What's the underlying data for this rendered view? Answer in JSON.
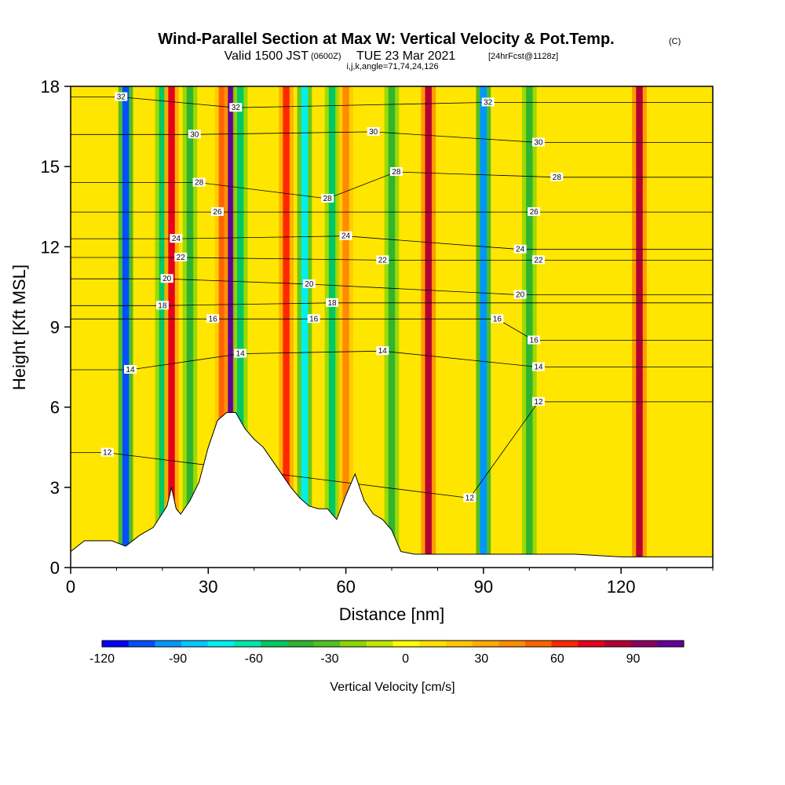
{
  "title": {
    "main": "Wind-Parallel Section at Max W: Vertical Velocity & Pot.Temp.",
    "main_suffix": "(C)",
    "valid_prefix": "Valid 1500 JST",
    "valid_z": "(0600Z)",
    "valid_date": "TUE 23 Mar 2021",
    "valid_fcst": "[24hrFcst@1128z]",
    "indices": "i,j,k,angle=71,74,24,126"
  },
  "chart_data": {
    "type": "heatmap",
    "xlabel": "Distance [nm]",
    "ylabel": "Height [Kft MSL]",
    "xlim": [
      0,
      140
    ],
    "ylim": [
      0,
      18
    ],
    "x_ticks": [
      0,
      30,
      60,
      90,
      120
    ],
    "y_ticks": [
      0,
      3,
      6,
      9,
      12,
      15,
      18
    ],
    "x_tick_labels": [
      "0",
      "30",
      "60",
      "90",
      "120"
    ],
    "y_tick_labels": [
      "0",
      "3",
      "6",
      "9",
      "12",
      "15",
      "18"
    ],
    "colorbar": {
      "title": "Vertical Velocity [cm/s]",
      "ticks": [
        -120,
        -90,
        -60,
        -30,
        0,
        30,
        60,
        90
      ],
      "tick_labels": [
        "-120",
        "-90",
        "-60",
        "-30",
        "0",
        "30",
        "60",
        "90"
      ],
      "range": [
        -120,
        110
      ],
      "colors": [
        "#0000ff",
        "#0050ff",
        "#0096ff",
        "#00c8ff",
        "#00f0f0",
        "#00e6aa",
        "#00c864",
        "#32b432",
        "#50c31e",
        "#8cd700",
        "#c3e600",
        "#ffff00",
        "#ffe100",
        "#ffc800",
        "#ffaa00",
        "#ff8c00",
        "#ff6400",
        "#ff2800",
        "#e6001e",
        "#b40032",
        "#8c0064",
        "#640096"
      ]
    },
    "updraft_bands": [
      {
        "x": 12,
        "w": -100
      },
      {
        "x": 20,
        "w": -50
      },
      {
        "x": 22,
        "w": 70
      },
      {
        "x": 26,
        "w": -40
      },
      {
        "x": 33,
        "w": 50
      },
      {
        "x": 35,
        "w": 100
      },
      {
        "x": 37,
        "w": -50
      },
      {
        "x": 47,
        "w": 65
      },
      {
        "x": 51,
        "w": -70
      },
      {
        "x": 57,
        "w": -50
      },
      {
        "x": 60,
        "w": 45
      },
      {
        "x": 70,
        "w": -40
      },
      {
        "x": 78,
        "w": 85
      },
      {
        "x": 90,
        "w": -90
      },
      {
        "x": 100,
        "w": -40
      },
      {
        "x": 124,
        "w": 85
      }
    ],
    "theta_contours": [
      {
        "value": "12",
        "label_at": [
          [
            8,
            4.3
          ],
          [
            87,
            2.6
          ],
          [
            102,
            6.2
          ]
        ]
      },
      {
        "value": "14",
        "label_at": [
          [
            13,
            7.4
          ],
          [
            37,
            8.0
          ],
          [
            68,
            8.1
          ],
          [
            102,
            7.5
          ]
        ]
      },
      {
        "value": "16",
        "label_at": [
          [
            31,
            9.3
          ],
          [
            53,
            9.3
          ],
          [
            93,
            9.3
          ],
          [
            101,
            8.5
          ]
        ]
      },
      {
        "value": "18",
        "label_at": [
          [
            20,
            9.8
          ],
          [
            57,
            9.9
          ]
        ]
      },
      {
        "value": "20",
        "label_at": [
          [
            21,
            10.8
          ],
          [
            52,
            10.6
          ],
          [
            98,
            10.2
          ]
        ]
      },
      {
        "value": "22",
        "label_at": [
          [
            24,
            11.6
          ],
          [
            68,
            11.5
          ],
          [
            102,
            11.5
          ]
        ]
      },
      {
        "value": "24",
        "label_at": [
          [
            23,
            12.3
          ],
          [
            60,
            12.4
          ],
          [
            98,
            11.9
          ]
        ]
      },
      {
        "value": "26",
        "label_at": [
          [
            32,
            13.3
          ],
          [
            101,
            13.3
          ]
        ]
      },
      {
        "value": "28",
        "label_at": [
          [
            28,
            14.4
          ],
          [
            56,
            13.8
          ],
          [
            71,
            14.8
          ],
          [
            106,
            14.6
          ]
        ]
      },
      {
        "value": "30",
        "label_at": [
          [
            27,
            16.2
          ],
          [
            66,
            16.3
          ],
          [
            102,
            15.9
          ]
        ]
      },
      {
        "value": "32",
        "label_at": [
          [
            11,
            17.6
          ],
          [
            36,
            17.2
          ],
          [
            91,
            17.4
          ]
        ]
      }
    ],
    "terrain_profile": {
      "x": [
        0,
        3,
        6,
        9,
        12,
        15,
        18,
        21,
        22,
        23,
        24,
        26,
        28,
        30,
        32,
        34,
        36,
        38,
        40,
        42,
        44,
        46,
        48,
        50,
        52,
        54,
        56,
        57,
        58,
        60,
        62,
        64,
        66,
        68,
        70,
        72,
        75,
        80,
        90,
        100,
        110,
        120,
        130,
        140
      ],
      "height": [
        0.6,
        1.0,
        1.0,
        1.0,
        0.8,
        1.2,
        1.5,
        2.3,
        3.0,
        2.2,
        2.0,
        2.5,
        3.2,
        4.5,
        5.5,
        5.8,
        5.8,
        5.2,
        4.8,
        4.5,
        4.0,
        3.5,
        3.0,
        2.6,
        2.3,
        2.2,
        2.2,
        2.0,
        1.8,
        2.7,
        3.5,
        2.5,
        2.0,
        1.8,
        1.4,
        0.6,
        0.5,
        0.5,
        0.5,
        0.5,
        0.5,
        0.4,
        0.4,
        0.4
      ]
    }
  }
}
